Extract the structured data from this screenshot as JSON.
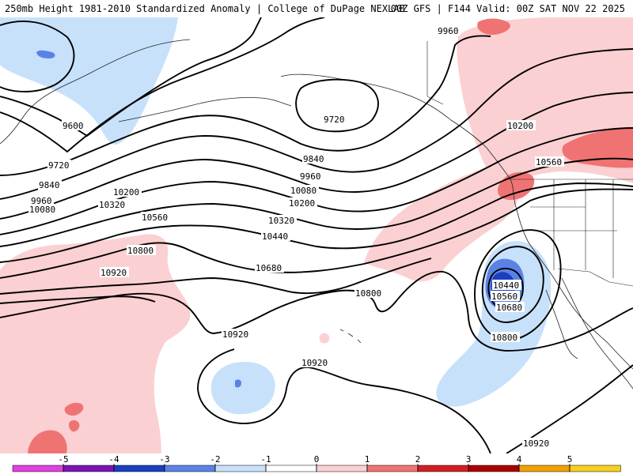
{
  "header": {
    "left_title": "250mb Height 1981-2010 Standardized Anomaly | College of DuPage NEXLAB",
    "right_title": "00Z GFS | F144 Valid: 00Z SAT NOV 22 2025"
  },
  "map": {
    "contour_labels": {
      "c9600": "9600",
      "c9720a": "9720",
      "c9720b": "9720",
      "c9840a": "9840",
      "c9840b": "9840",
      "c9960a": "9960",
      "c9960b": "9960",
      "c9960c": "9960",
      "c10080a": "10080",
      "c10080b": "10080",
      "c10200a": "10200",
      "c10200b": "10200",
      "c10200c": "10200",
      "c10320a": "10320",
      "c10320b": "10320",
      "c10440a": "10440",
      "c10440b": "10440",
      "c10560a": "10560",
      "c10560b": "10560",
      "c10560c": "10560",
      "c10680a": "10680",
      "c10680b": "10680",
      "c10800a": "10800",
      "c10800b": "10800",
      "c10800c": "10800",
      "c10920a": "10920",
      "c10920b": "10920",
      "c10920c": "10920",
      "c10920d": "10920"
    },
    "anomaly_colors": {
      "neg5": "#e040e0",
      "neg4": "#7a14b4",
      "neg3": "#1a3fbf",
      "neg2": "#5a82e6",
      "neg1": "#c7e1fa",
      "zero": "#ffffff",
      "pos1": "#fbd0d2",
      "pos2": "#f07374",
      "pos3": "#d21e22",
      "pos4": "#aa0000",
      "pos5": "#f0a000"
    }
  },
  "colorbar": {
    "labels": [
      "-5",
      "-4",
      "-3",
      "-2",
      "-1",
      "0",
      "1",
      "2",
      "3",
      "4",
      "5"
    ],
    "colors": [
      "#e040e0",
      "#7a14b4",
      "#1a3fbf",
      "#5a82e6",
      "#c7e1fa",
      "#ffffff",
      "#fbd0d2",
      "#f07374",
      "#d21e22",
      "#aa0000",
      "#f0a000",
      "#f5d020"
    ]
  }
}
